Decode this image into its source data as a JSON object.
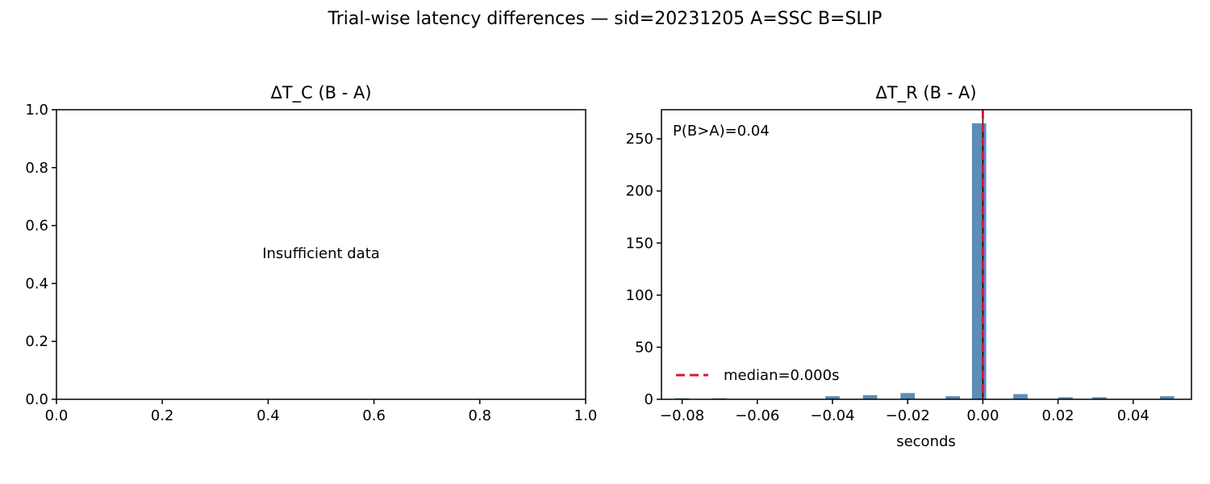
{
  "figure": {
    "suptitle": "Trial-wise latency differences — sid=20231205  A=SSC  B=SLIP"
  },
  "chart_data": [
    {
      "type": "histogram",
      "title": "ΔT_C (B - A)",
      "xlabel": "",
      "ylabel": "",
      "xlim": [
        0.0,
        1.0
      ],
      "ylim": [
        0.0,
        1.0
      ],
      "x_ticks": [
        "0.0",
        "0.2",
        "0.4",
        "0.6",
        "0.8",
        "1.0"
      ],
      "y_ticks": [
        "0.0",
        "0.2",
        "0.4",
        "0.6",
        "0.8",
        "1.0"
      ],
      "annotation": "Insufficient data",
      "bins": []
    },
    {
      "type": "histogram",
      "title": "ΔT_R (B - A)",
      "xlabel": "seconds",
      "ylabel": "",
      "xlim": [
        -0.0855,
        0.0555
      ],
      "ylim": [
        0,
        278
      ],
      "x_ticks": [
        "−0.08",
        "−0.06",
        "−0.04",
        "−0.02",
        "0.00",
        "0.02",
        "0.04"
      ],
      "y_ticks": [
        "0",
        "50",
        "100",
        "150",
        "200",
        "250"
      ],
      "bar_color": "#5b8db8",
      "bins": [
        {
          "x": -0.08,
          "count": 1
        },
        {
          "x": -0.07,
          "count": 1
        },
        {
          "x": -0.04,
          "count": 3
        },
        {
          "x": -0.03,
          "count": 4
        },
        {
          "x": -0.02,
          "count": 6
        },
        {
          "x": -0.008,
          "count": 3
        },
        {
          "x": -0.001,
          "count": 265
        },
        {
          "x": 0.01,
          "count": 5
        },
        {
          "x": 0.022,
          "count": 2
        },
        {
          "x": 0.031,
          "count": 2
        },
        {
          "x": 0.049,
          "count": 3
        }
      ],
      "bin_width": 0.0038,
      "zero_line": {
        "x": 0.0,
        "color": "#000000"
      },
      "median_line": {
        "x": 0.0,
        "color": "#dc143c",
        "label": "median=0.000s"
      },
      "annotation": "P(B>A)=0.04",
      "legend_position": "lower-left"
    }
  ]
}
